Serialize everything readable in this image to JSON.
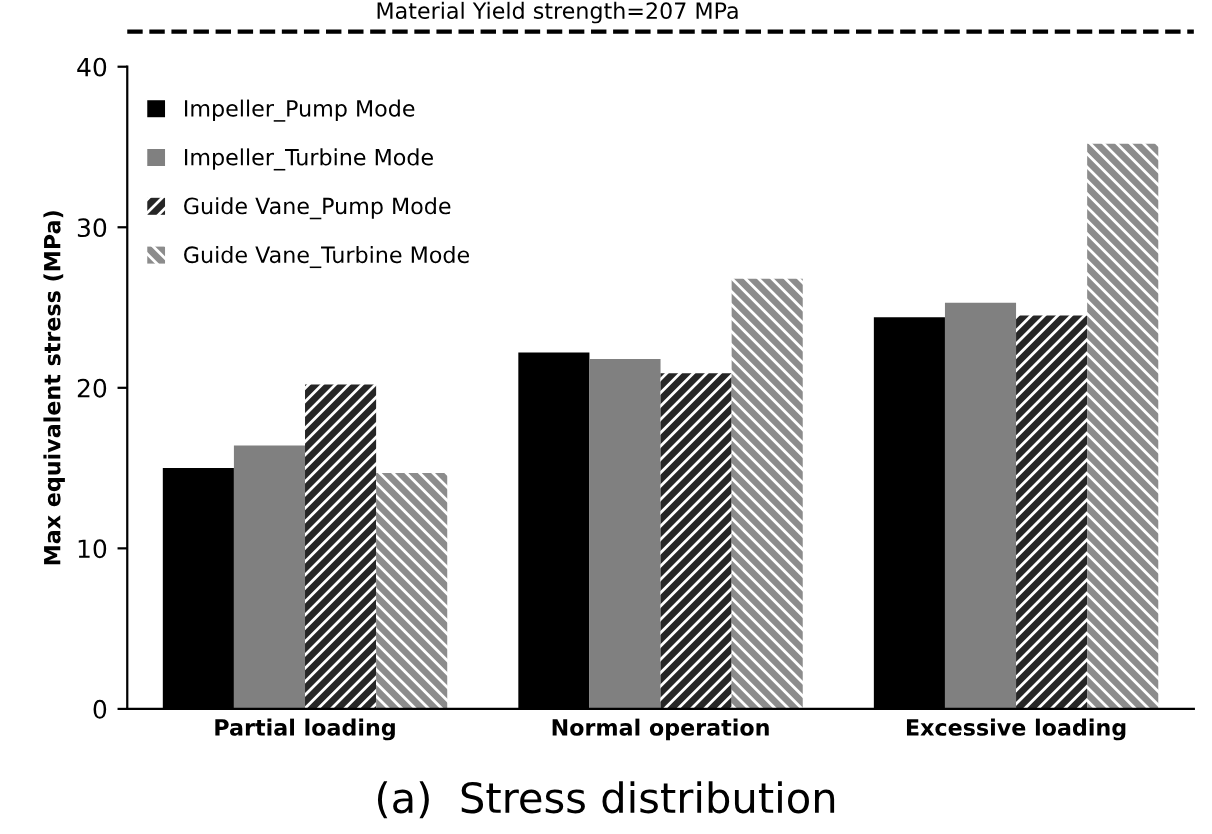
{
  "chart_data": {
    "type": "bar",
    "title": "(a)  Stress distribution",
    "ylabel": "Max equivalent stress (MPa)",
    "categories": [
      "Partial loading",
      "Normal operation",
      "Excessive loading"
    ],
    "series": [
      {
        "name": "Impeller_Pump Mode",
        "color": "#000000",
        "values": [
          15.0,
          22.2,
          24.4
        ]
      },
      {
        "name": "Impeller_Turbine Mode",
        "color": "#808080",
        "values": [
          16.4,
          21.8,
          25.3
        ]
      },
      {
        "name": "Guide Vane_Pump Mode",
        "color": "#262626",
        "values": [
          20.2,
          20.9,
          24.5
        ]
      },
      {
        "name": "Guide Vane_Turbine Mode",
        "color": "#8c8c8c",
        "values": [
          14.7,
          26.8,
          35.2
        ]
      }
    ],
    "ylim": [
      0,
      40
    ],
    "yticks": [
      0,
      10,
      20,
      30,
      40
    ],
    "grid": false,
    "legend": "top left",
    "annotations": [
      "Material Yield strength=207 MPa"
    ]
  }
}
